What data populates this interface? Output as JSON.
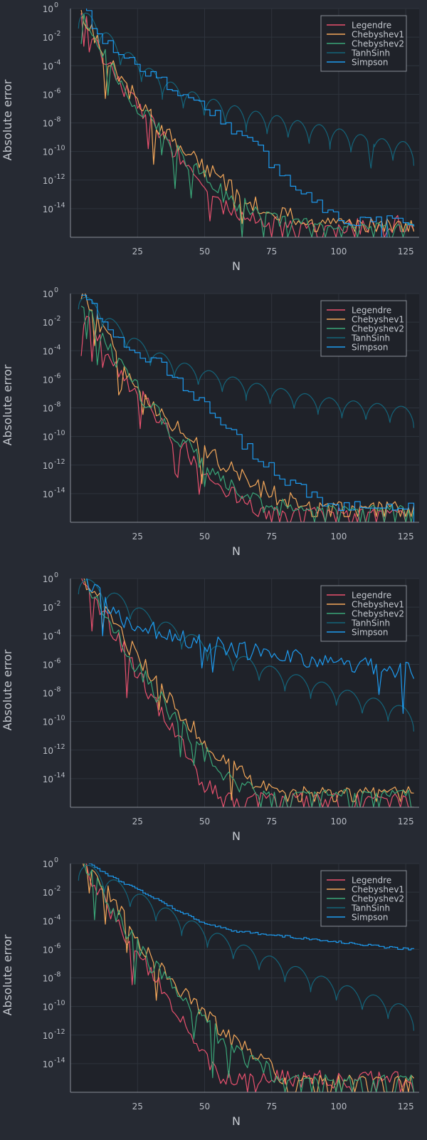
{
  "chart_data": [
    {
      "type": "line",
      "xlabel": "N",
      "ylabel": "Absolute error",
      "y_scale": "log10",
      "ylim": [
        1e-16,
        1
      ],
      "xlim": [
        0,
        130
      ],
      "xticks": [
        25,
        50,
        75,
        100,
        125
      ],
      "yticks": [
        {
          "base": "10",
          "exp": "0"
        },
        {
          "base": "10",
          "exp": "-2"
        },
        {
          "base": "10",
          "exp": "-4"
        },
        {
          "base": "10",
          "exp": "-6"
        },
        {
          "base": "10",
          "exp": "-8"
        },
        {
          "base": "10",
          "exp": "-10"
        },
        {
          "base": "10",
          "exp": "-12"
        },
        {
          "base": "10",
          "exp": "-14"
        }
      ],
      "grid": true,
      "legend_position": "top-right",
      "series": [
        {
          "name": "Legendre",
          "color": "#e8516e",
          "x": [
            4,
            10,
            20,
            30,
            40,
            50,
            60,
            70,
            80,
            87,
            100,
            128
          ],
          "log10_y": [
            -0.5,
            -2.6,
            -5.6,
            -8.0,
            -10.2,
            -12.6,
            -14.4,
            -14.8,
            -15.0,
            -15.5,
            -15.2,
            -15.0
          ],
          "floor_log10": -15.2,
          "min_log10": -16
        },
        {
          "name": "Chebyshev1",
          "color": "#f5a85a",
          "x": [
            4,
            10,
            20,
            30,
            40,
            50,
            60,
            70,
            80,
            90,
            100,
            128
          ],
          "log10_y": [
            -0.3,
            -2.2,
            -5.2,
            -7.6,
            -9.6,
            -11.2,
            -12.6,
            -13.8,
            -14.5,
            -14.9,
            -14.9,
            -14.9
          ],
          "floor_log10": -14.9,
          "min_log10": -15.6
        },
        {
          "name": "Chebyshev2",
          "color": "#3aa678",
          "x": [
            4,
            10,
            20,
            30,
            40,
            50,
            60,
            70,
            80,
            90,
            100,
            128
          ],
          "log10_y": [
            -0.4,
            -2.4,
            -5.5,
            -8.0,
            -10.0,
            -11.8,
            -13.4,
            -14.4,
            -15.0,
            -15.2,
            -15.2,
            -15.2
          ],
          "floor_log10": -15.2,
          "min_log10": -16
        },
        {
          "name": "TanhSinh",
          "color": "#14647a",
          "x": [
            3,
            10,
            18,
            25,
            32,
            40,
            48,
            56,
            65,
            72,
            80,
            88,
            96,
            104,
            112,
            120,
            128
          ],
          "log10_y": [
            0.2,
            -0.9,
            -2.5,
            -3.5,
            -4.5,
            -5.4,
            -6.0,
            -6.5,
            -7.0,
            -7.3,
            -7.6,
            -8.0,
            -8.2,
            -8.6,
            -9.0,
            -9.2,
            -9.4
          ],
          "humps": 16,
          "dip_depth": 1.6,
          "special_dip": {
            "x": 112,
            "log10_y": -11.2
          }
        },
        {
          "name": "Simpson",
          "color": "#1d9bf0",
          "x": [
            4,
            10,
            20,
            30,
            40,
            50,
            60,
            70,
            80,
            90,
            100,
            128
          ],
          "log10_y": [
            0.3,
            -1.8,
            -3.3,
            -4.7,
            -5.8,
            -6.8,
            -8.4,
            -10.0,
            -11.8,
            -13.4,
            -14.6,
            -15.2
          ],
          "step": 2,
          "floor_log10": -15.2,
          "min_log10": -16
        }
      ]
    },
    {
      "type": "line",
      "xlabel": "N",
      "ylabel": "Absolute error",
      "y_scale": "log10",
      "ylim": [
        1e-16,
        1
      ],
      "xlim": [
        0,
        130
      ],
      "xticks": [
        25,
        50,
        75,
        100,
        125
      ],
      "yticks": [
        {
          "base": "10",
          "exp": "0"
        },
        {
          "base": "10",
          "exp": "-2"
        },
        {
          "base": "10",
          "exp": "-4"
        },
        {
          "base": "10",
          "exp": "-6"
        },
        {
          "base": "10",
          "exp": "-8"
        },
        {
          "base": "10",
          "exp": "-10"
        },
        {
          "base": "10",
          "exp": "-12"
        },
        {
          "base": "10",
          "exp": "-14"
        }
      ],
      "grid": true,
      "legend_position": "top-right",
      "series": [
        {
          "name": "Legendre",
          "color": "#e8516e",
          "x": [
            4,
            10,
            20,
            30,
            40,
            50,
            60,
            66,
            75,
            128
          ],
          "log10_y": [
            -1.4,
            -2.8,
            -5.8,
            -8.0,
            -10.4,
            -12.3,
            -14.0,
            -15.0,
            -15.2,
            -15.2
          ],
          "floor_log10": -15.2,
          "min_log10": -16
        },
        {
          "name": "Chebyshev1",
          "color": "#f5a85a",
          "x": [
            4,
            10,
            20,
            30,
            40,
            50,
            60,
            70,
            80,
            90,
            128
          ],
          "log10_y": [
            0.2,
            -2.0,
            -5.0,
            -7.6,
            -9.4,
            -11.0,
            -12.4,
            -13.6,
            -14.4,
            -15.0,
            -14.8
          ],
          "floor_log10": -14.8,
          "min_log10": -15.6
        },
        {
          "name": "Chebyshev2",
          "color": "#3aa678",
          "x": [
            4,
            10,
            20,
            30,
            40,
            50,
            60,
            70,
            80,
            128
          ],
          "log10_y": [
            -0.3,
            -2.4,
            -5.5,
            -8.0,
            -10.0,
            -12.0,
            -13.6,
            -14.6,
            -15.0,
            -15.0
          ],
          "floor_log10": -15.0,
          "min_log10": -16
        },
        {
          "name": "TanhSinh",
          "color": "#14647a",
          "x": [
            3,
            10,
            18,
            25,
            32,
            40,
            50,
            60,
            70,
            80,
            90,
            100,
            110,
            120,
            128
          ],
          "log10_y": [
            0.3,
            -0.8,
            -2.2,
            -3.2,
            -4.0,
            -4.7,
            -5.3,
            -5.8,
            -6.3,
            -6.7,
            -7.1,
            -7.4,
            -7.6,
            -7.8,
            -8.0
          ],
          "humps": 14,
          "dip_depth": 1.4
        },
        {
          "name": "Simpson",
          "color": "#1d9bf0",
          "x": [
            4,
            10,
            20,
            30,
            40,
            50,
            60,
            70,
            80,
            90,
            100,
            128
          ],
          "log10_y": [
            0.3,
            -1.8,
            -3.3,
            -4.6,
            -6.2,
            -8.0,
            -10.0,
            -11.6,
            -13.0,
            -14.3,
            -15.0,
            -15.1
          ],
          "step": 2,
          "floor_log10": -15.1,
          "min_log10": -16
        }
      ]
    },
    {
      "type": "line",
      "xlabel": "N",
      "ylabel": "Absolute error",
      "y_scale": "log10",
      "ylim": [
        1e-16,
        1
      ],
      "xlim": [
        0,
        130
      ],
      "xticks": [
        25,
        50,
        75,
        100,
        125
      ],
      "yticks": [
        {
          "base": "10",
          "exp": "0"
        },
        {
          "base": "10",
          "exp": "-2"
        },
        {
          "base": "10",
          "exp": "-4"
        },
        {
          "base": "10",
          "exp": "-6"
        },
        {
          "base": "10",
          "exp": "-8"
        },
        {
          "base": "10",
          "exp": "-10"
        },
        {
          "base": "10",
          "exp": "-12"
        },
        {
          "base": "10",
          "exp": "-14"
        }
      ],
      "grid": true,
      "legend_position": "top-right",
      "series": [
        {
          "name": "Legendre",
          "color": "#e8516e",
          "x": [
            4,
            10,
            20,
            30,
            40,
            48,
            55,
            128
          ],
          "log10_y": [
            0.2,
            -1.6,
            -5.0,
            -8.2,
            -11.2,
            -14.0,
            -15.2,
            -15.2
          ],
          "floor_log10": -15.2,
          "min_log10": -16
        },
        {
          "name": "Chebyshev1",
          "color": "#f5a85a",
          "x": [
            4,
            10,
            20,
            30,
            40,
            50,
            60,
            70,
            80,
            128
          ],
          "log10_y": [
            0.2,
            -1.2,
            -4.2,
            -6.8,
            -9.2,
            -11.4,
            -13.2,
            -14.6,
            -15.0,
            -14.8
          ],
          "floor_log10": -14.8,
          "min_log10": -15.6
        },
        {
          "name": "Chebyshev2",
          "color": "#3aa678",
          "x": [
            4,
            10,
            20,
            30,
            40,
            50,
            60,
            70,
            128
          ],
          "log10_y": [
            0.2,
            -1.4,
            -4.8,
            -7.6,
            -10.0,
            -12.2,
            -14.0,
            -15.0,
            -15.0
          ],
          "floor_log10": -15.0,
          "min_log10": -16
        },
        {
          "name": "TanhSinh",
          "color": "#14647a",
          "x": [
            3,
            10,
            20,
            30,
            40,
            50,
            60,
            70,
            80,
            90,
            100,
            110,
            120,
            128
          ],
          "log10_y": [
            0.4,
            -0.4,
            -1.3,
            -2.5,
            -3.4,
            -4.3,
            -5.1,
            -5.8,
            -6.5,
            -7.0,
            -7.6,
            -8.2,
            -8.7,
            -9.2
          ],
          "humps": 13,
          "dip_depth": 1.5
        },
        {
          "name": "Simpson",
          "color": "#1d9bf0",
          "x": [
            5,
            10,
            15,
            20,
            25,
            30,
            40,
            50,
            60,
            70,
            80,
            90,
            100,
            110,
            120,
            128
          ],
          "log10_y": [
            0.2,
            -1.0,
            -2.0,
            -2.9,
            -3.4,
            -3.6,
            -4.1,
            -4.5,
            -4.9,
            -5.2,
            -5.5,
            -5.7,
            -5.9,
            -6.1,
            -6.3,
            -6.4
          ]
        }
      ]
    },
    {
      "type": "line",
      "xlabel": "N",
      "ylabel": "Absolute error",
      "y_scale": "log10",
      "ylim": [
        1e-16,
        1
      ],
      "xlim": [
        0,
        130
      ],
      "xticks": [
        25,
        50,
        75,
        100,
        125
      ],
      "yticks": [
        {
          "base": "10",
          "exp": "0"
        },
        {
          "base": "10",
          "exp": "-2"
        },
        {
          "base": "10",
          "exp": "-4"
        },
        {
          "base": "10",
          "exp": "-6"
        },
        {
          "base": "10",
          "exp": "-8"
        },
        {
          "base": "10",
          "exp": "-10"
        },
        {
          "base": "10",
          "exp": "-12"
        },
        {
          "base": "10",
          "exp": "-14"
        }
      ],
      "grid": true,
      "legend_position": "top-right",
      "series": [
        {
          "name": "Legendre",
          "color": "#e8516e",
          "x": [
            4,
            10,
            20,
            30,
            40,
            50,
            55,
            128
          ],
          "log10_y": [
            0.0,
            -1.8,
            -5.0,
            -7.8,
            -10.4,
            -13.6,
            -15.0,
            -15.2
          ],
          "floor_log10": -15.2,
          "min_log10": -16
        },
        {
          "name": "Chebyshev1",
          "color": "#f5a85a",
          "x": [
            4,
            10,
            20,
            30,
            40,
            50,
            60,
            70,
            80,
            128
          ],
          "log10_y": [
            0.2,
            -1.0,
            -3.8,
            -6.6,
            -8.8,
            -10.6,
            -12.2,
            -13.6,
            -15.0,
            -15.0
          ],
          "floor_log10": -15.0,
          "min_log10": -16
        },
        {
          "name": "Chebyshev2",
          "color": "#3aa678",
          "x": [
            4,
            10,
            20,
            30,
            40,
            50,
            60,
            70,
            80,
            128
          ],
          "log10_y": [
            0.2,
            -1.4,
            -4.4,
            -7.0,
            -9.2,
            -11.2,
            -12.8,
            -14.2,
            -15.0,
            -15.0
          ],
          "floor_log10": -15.0,
          "min_log10": -16
        },
        {
          "name": "TanhSinh",
          "color": "#14647a",
          "x": [
            3,
            10,
            20,
            30,
            40,
            50,
            60,
            70,
            80,
            90,
            100,
            110,
            120,
            128
          ],
          "log10_y": [
            0.3,
            -0.4,
            -1.5,
            -2.5,
            -3.5,
            -4.4,
            -5.3,
            -6.1,
            -6.9,
            -7.6,
            -8.3,
            -9.0,
            -9.6,
            -10.2
          ],
          "humps": 13,
          "dip_depth": 1.5
        },
        {
          "name": "Simpson",
          "color": "#1d9bf0",
          "x": [
            5,
            10,
            20,
            30,
            40,
            50,
            60,
            70,
            80,
            90,
            100,
            110,
            120,
            128
          ],
          "log10_y": [
            0.3,
            -0.4,
            -1.4,
            -2.3,
            -3.3,
            -4.2,
            -4.7,
            -4.9,
            -5.1,
            -5.3,
            -5.5,
            -5.7,
            -5.9,
            -6.0
          ],
          "stair": 1
        }
      ]
    }
  ]
}
